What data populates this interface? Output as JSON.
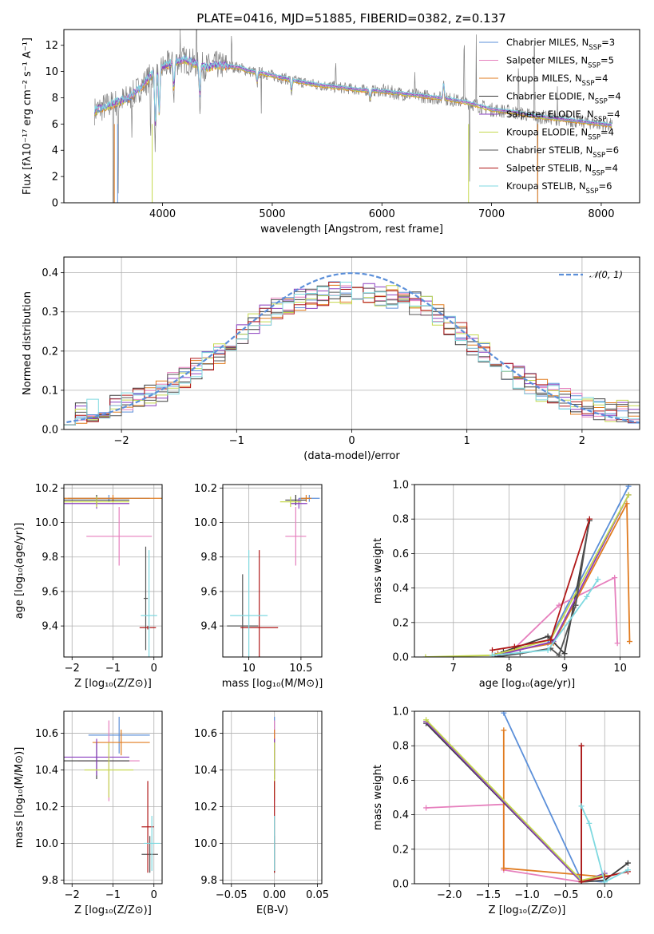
{
  "colors": {
    "c1": "#5b8fd9",
    "c2": "#e67fbd",
    "c3": "#e07b1f",
    "c4": "#3b3b3b",
    "c5": "#8a3fbf",
    "c6": "#c4d84d",
    "c7": "#555555",
    "c8": "#b01818",
    "c9": "#7fd9e0",
    "spec_grey": "#808080",
    "grid": "#b0b0b0"
  },
  "chart_data": [
    {
      "id": "spectrum",
      "type": "line",
      "title": "PLATE=0416, MJD=51885, FIBERID=0382, z=0.137",
      "xlabel": "wavelength [Angstrom, rest frame]",
      "ylabel": "Flux [fλ10⁻¹⁷ erg cm⁻² s⁻¹ A⁻¹]",
      "xlim": [
        3100,
        8350
      ],
      "ylim": [
        0,
        13.2
      ],
      "xticks": [
        4000,
        5000,
        6000,
        7000,
        8000
      ],
      "yticks": [
        0,
        2,
        4,
        6,
        8,
        10,
        12
      ],
      "grid": false,
      "legend_position": "upper right",
      "legend": [
        {
          "label": "Chabrier MILES, N",
          "sub": "SSP",
          "suffix": "=3",
          "color": "c1"
        },
        {
          "label": "Salpeter MILES, N",
          "sub": "SSP",
          "suffix": "=5",
          "color": "c2"
        },
        {
          "label": "Kroupa MILES, N",
          "sub": "SSP",
          "suffix": "=4",
          "color": "c3"
        },
        {
          "label": "Chabrier ELODIE, N",
          "sub": "SSP",
          "suffix": "=4",
          "color": "c4"
        },
        {
          "label": "Salpeter ELODIE, N",
          "sub": "SSP",
          "suffix": "=4",
          "color": "c5"
        },
        {
          "label": "Kroupa ELODIE, N",
          "sub": "SSP",
          "suffix": "=4",
          "color": "c6"
        },
        {
          "label": "Chabrier STELIB, N",
          "sub": "SSP",
          "suffix": "=6",
          "color": "c7"
        },
        {
          "label": "Salpeter STELIB, N",
          "sub": "SSP",
          "suffix": "=4",
          "color": "c8"
        },
        {
          "label": "Kroupa STELIB, N",
          "sub": "SSP",
          "suffix": "=6",
          "color": "c9"
        }
      ],
      "continuum_x": [
        3380,
        3500,
        3600,
        3700,
        3800,
        3900,
        4000,
        4100,
        4200,
        4300,
        4400,
        4500,
        4600,
        4700,
        4800,
        4900,
        5000,
        5200,
        5400,
        5600,
        5800,
        6000,
        6200,
        6400,
        6600,
        6800,
        7000,
        7200,
        7400,
        7600,
        7800,
        8000,
        8100
      ],
      "continuum_y": [
        7.0,
        7.4,
        7.7,
        8.0,
        8.8,
        9.7,
        10.3,
        10.7,
        10.9,
        10.6,
        10.3,
        10.5,
        10.4,
        10.3,
        10.0,
        9.9,
        9.7,
        9.3,
        9.0,
        8.8,
        8.6,
        8.5,
        8.3,
        8.1,
        7.9,
        7.6,
        7.1,
        6.9,
        6.6,
        6.4,
        6.2,
        6.0,
        5.9
      ]
    },
    {
      "id": "residuals",
      "type": "histogram",
      "xlabel": "(data-model)/error",
      "ylabel": "Normed distribution",
      "xlim": [
        -2.5,
        2.5
      ],
      "ylim": [
        0,
        0.44
      ],
      "xticks": [
        -2,
        -1,
        0,
        1,
        2
      ],
      "yticks": [
        0.0,
        0.1,
        0.2,
        0.3,
        0.4
      ],
      "grid": true,
      "legend_label": "𝒩(0, 1)",
      "legend_position": "upper right",
      "bin_width": 0.1
    },
    {
      "id": "age_vs_Z",
      "type": "errorbar",
      "xlabel": "Z [log₁₀(Z/Z⊙)]",
      "ylabel": "age  [log₁₀(age/yr)]",
      "xlim": [
        -2.2,
        0.2
      ],
      "ylim": [
        9.22,
        10.22
      ],
      "xticks": [
        -2,
        -1,
        0
      ],
      "yticks": [
        9.4,
        9.6,
        9.8,
        10.0,
        10.2
      ],
      "grid": true,
      "points": [
        {
          "color": "c1",
          "x": -1.1,
          "xerr": 1.0,
          "y": 10.14,
          "yerr": 0.02
        },
        {
          "color": "c2",
          "x": -0.85,
          "xerr": 0.8,
          "y": 9.92,
          "yerr": 0.17
        },
        {
          "color": "c3",
          "x": -1.0,
          "xerr": 1.2,
          "y": 10.14,
          "yerr": 0.02
        },
        {
          "color": "c4",
          "x": -1.4,
          "xerr": 0.8,
          "y": 10.13,
          "yerr": 0.03
        },
        {
          "color": "c5",
          "x": -1.4,
          "xerr": 0.8,
          "y": 10.11,
          "yerr": 0.03
        },
        {
          "color": "c6",
          "x": -1.4,
          "xerr": 0.8,
          "y": 10.12,
          "yerr": 0.03
        },
        {
          "color": "c7",
          "x": -0.2,
          "xerr": 0.05,
          "y": 9.56,
          "yerr": 0.3
        },
        {
          "color": "c8",
          "x": -0.15,
          "xerr": 0.2,
          "y": 9.39,
          "yerr": 0.01
        },
        {
          "color": "c9",
          "x": -0.12,
          "xerr": 0.2,
          "y": 9.46,
          "yerr": 0.38
        }
      ]
    },
    {
      "id": "age_vs_mass",
      "type": "errorbar",
      "xlabel": "mass [log₁₀(M/M⊙)]",
      "ylabel": "",
      "xlim": [
        9.75,
        10.7
      ],
      "ylim": [
        9.22,
        10.22
      ],
      "xticks": [
        10.0,
        10.5
      ],
      "yticks": [
        9.4,
        9.6,
        9.8,
        10.0,
        10.2
      ],
      "grid": true,
      "points": [
        {
          "color": "c1",
          "x": 10.58,
          "xerr": 0.1,
          "y": 10.14,
          "yerr": 0.02
        },
        {
          "color": "c2",
          "x": 10.45,
          "xerr": 0.1,
          "y": 9.92,
          "yerr": 0.17
        },
        {
          "color": "c3",
          "x": 10.55,
          "xerr": 0.05,
          "y": 10.14,
          "yerr": 0.02
        },
        {
          "color": "c4",
          "x": 10.45,
          "xerr": 0.1,
          "y": 10.13,
          "yerr": 0.03
        },
        {
          "color": "c5",
          "x": 10.48,
          "xerr": 0.08,
          "y": 10.11,
          "yerr": 0.03
        },
        {
          "color": "c6",
          "x": 10.4,
          "xerr": 0.1,
          "y": 10.12,
          "yerr": 0.03
        },
        {
          "color": "c7",
          "x": 9.94,
          "xerr": 0.15,
          "y": 9.4,
          "yerr": 0.3
        },
        {
          "color": "c8",
          "x": 10.1,
          "xerr": 0.18,
          "y": 9.39,
          "yerr": 0.45
        },
        {
          "color": "c9",
          "x": 10.0,
          "xerr": 0.18,
          "y": 9.46,
          "yerr": 0.38
        }
      ]
    },
    {
      "id": "weight_vs_age",
      "type": "line",
      "xlabel": "age  [log₁₀(age/yr)]",
      "ylabel": "mass weight",
      "xlim": [
        6.3,
        10.35
      ],
      "ylim": [
        0,
        1.0
      ],
      "xticks": [
        7,
        8,
        9,
        10
      ],
      "yticks": [
        0.0,
        0.2,
        0.4,
        0.6,
        0.8,
        1.0
      ],
      "grid": true,
      "series": [
        {
          "color": "c1",
          "x": [
            7.75,
            8.7,
            10.15
          ],
          "y": [
            0.01,
            0.08,
            0.99
          ]
        },
        {
          "color": "c2",
          "x": [
            7.7,
            8.1,
            8.9,
            9.9,
            9.95
          ],
          "y": [
            0.01,
            0.05,
            0.3,
            0.46,
            0.08
          ]
        },
        {
          "color": "c3",
          "x": [
            7.8,
            8.8,
            10.12,
            10.17
          ],
          "y": [
            0.02,
            0.08,
            0.89,
            0.09
          ]
        },
        {
          "color": "c4",
          "x": [
            7.9,
            8.7,
            9.0,
            9.45
          ],
          "y": [
            0.03,
            0.12,
            0.02,
            0.79
          ]
        },
        {
          "color": "c5",
          "x": [
            7.8,
            8.8,
            10.15
          ],
          "y": [
            0.01,
            0.09,
            0.94
          ]
        },
        {
          "color": "c6",
          "x": [
            6.5,
            7.7,
            8.75,
            10.15
          ],
          "y": [
            0.0,
            0.01,
            0.1,
            0.94
          ]
        },
        {
          "color": "c7",
          "x": [
            7.75,
            8.2,
            8.75,
            8.9,
            9.2,
            9.45
          ],
          "y": [
            0.0,
            0.02,
            0.05,
            0.01,
            0.3,
            0.8
          ]
        },
        {
          "color": "c8",
          "x": [
            7.7,
            8.1,
            8.75,
            9.45
          ],
          "y": [
            0.04,
            0.06,
            0.1,
            0.8
          ]
        },
        {
          "color": "c9",
          "x": [
            7.7,
            8.7,
            9.4,
            9.6
          ],
          "y": [
            0.01,
            0.04,
            0.35,
            0.45
          ]
        }
      ]
    },
    {
      "id": "mass_vs_Z",
      "type": "errorbar",
      "xlabel": "Z [log₁₀(Z/Z⊙)]",
      "ylabel": "mass [log₁₀(M/M⊙)]",
      "xlim": [
        -2.2,
        0.2
      ],
      "ylim": [
        9.78,
        10.72
      ],
      "xticks": [
        -2,
        -1,
        0
      ],
      "yticks": [
        9.8,
        10.0,
        10.2,
        10.4,
        10.6
      ],
      "grid": true,
      "points": [
        {
          "color": "c1",
          "x": -0.85,
          "xerr": 0.75,
          "y": 10.59,
          "yerr": 0.1
        },
        {
          "color": "c2",
          "x": -1.1,
          "xerr": 0.75,
          "y": 10.45,
          "yerr": 0.22
        },
        {
          "color": "c3",
          "x": -0.8,
          "xerr": 0.7,
          "y": 10.55,
          "yerr": 0.07
        },
        {
          "color": "c4",
          "x": -1.4,
          "xerr": 0.8,
          "y": 10.45,
          "yerr": 0.1
        },
        {
          "color": "c5",
          "x": -1.4,
          "xerr": 0.8,
          "y": 10.47,
          "yerr": 0.1
        },
        {
          "color": "c6",
          "x": -1.1,
          "xerr": 0.6,
          "y": 10.4,
          "yerr": 0.15
        },
        {
          "color": "c7",
          "x": -0.1,
          "xerr": 0.2,
          "y": 9.94,
          "yerr": 0.1
        },
        {
          "color": "c8",
          "x": -0.15,
          "xerr": 0.15,
          "y": 10.09,
          "yerr": 0.25
        },
        {
          "color": "c9",
          "x": -0.05,
          "xerr": 0.2,
          "y": 10.0,
          "yerr": 0.15
        }
      ]
    },
    {
      "id": "mass_vs_ebv",
      "type": "errorbar",
      "xlabel": "E(B-V)",
      "ylabel": "",
      "xlim": [
        -0.06,
        0.055
      ],
      "ylim": [
        9.78,
        10.72
      ],
      "xticks": [
        -0.05,
        0.0,
        0.05
      ],
      "yticks": [
        9.8,
        10.0,
        10.2,
        10.4,
        10.6
      ],
      "grid": true,
      "points": [
        {
          "color": "c1",
          "x": 0.0,
          "xerr": 0.0,
          "y": 10.59,
          "yerr": 0.1
        },
        {
          "color": "c2",
          "x": 0.0,
          "xerr": 0.0,
          "y": 10.45,
          "yerr": 0.22
        },
        {
          "color": "c3",
          "x": 0.0,
          "xerr": 0.0,
          "y": 10.55,
          "yerr": 0.07
        },
        {
          "color": "c4",
          "x": 0.0,
          "xerr": 0.0,
          "y": 10.45,
          "yerr": 0.1
        },
        {
          "color": "c5",
          "x": 0.0,
          "xerr": 0.0,
          "y": 10.47,
          "yerr": 0.1
        },
        {
          "color": "c6",
          "x": 0.0,
          "xerr": 0.0,
          "y": 10.4,
          "yerr": 0.15
        },
        {
          "color": "c7",
          "x": 0.0,
          "xerr": 0.0,
          "y": 9.94,
          "yerr": 0.1
        },
        {
          "color": "c8",
          "x": 0.0,
          "xerr": 0.0,
          "y": 10.09,
          "yerr": 0.25
        },
        {
          "color": "c9",
          "x": 0.0,
          "xerr": 0.0,
          "y": 10.0,
          "yerr": 0.15
        }
      ]
    },
    {
      "id": "weight_vs_Z",
      "type": "line",
      "xlabel": "Z [log₁₀(Z/Z⊙)]",
      "ylabel": "mass weight",
      "xlim": [
        -2.45,
        0.45
      ],
      "ylim": [
        0,
        1.0
      ],
      "xticks": [
        -2.0,
        -1.5,
        -1.0,
        -0.5,
        0.0
      ],
      "yticks": [
        0.0,
        0.2,
        0.4,
        0.6,
        0.8,
        1.0
      ],
      "grid": true,
      "series": [
        {
          "color": "c1",
          "x": [
            -1.3,
            -0.3,
            0.0
          ],
          "y": [
            0.99,
            0.02,
            0.01
          ]
        },
        {
          "color": "c2",
          "x": [
            -2.3,
            -1.3,
            -1.3,
            -0.3,
            0.0
          ],
          "y": [
            0.44,
            0.46,
            0.08,
            0.01,
            0.05
          ]
        },
        {
          "color": "c3",
          "x": [
            -1.3,
            -1.3,
            0.0,
            0.0
          ],
          "y": [
            0.89,
            0.09,
            0.04,
            0.02
          ]
        },
        {
          "color": "c4",
          "x": [
            -2.3,
            -0.3,
            0.0,
            0.3
          ],
          "y": [
            0.93,
            0.01,
            0.02,
            0.12
          ]
        },
        {
          "color": "c5",
          "x": [
            -2.3,
            -0.3,
            0.0
          ],
          "y": [
            0.94,
            0.01,
            0.06
          ]
        },
        {
          "color": "c6",
          "x": [
            -2.3,
            -0.3,
            0.0
          ],
          "y": [
            0.95,
            0.02,
            0.05
          ]
        },
        {
          "color": "c7",
          "x": [
            -0.3,
            -0.3,
            0.0
          ],
          "y": [
            0.8,
            0.01,
            0.02
          ]
        },
        {
          "color": "c8",
          "x": [
            -0.3,
            -0.3,
            0.0,
            0.3
          ],
          "y": [
            0.8,
            0.01,
            0.04,
            0.07
          ]
        },
        {
          "color": "c9",
          "x": [
            -0.3,
            -0.2,
            0.0,
            0.3
          ],
          "y": [
            0.45,
            0.35,
            0.01,
            0.08
          ]
        }
      ]
    }
  ]
}
